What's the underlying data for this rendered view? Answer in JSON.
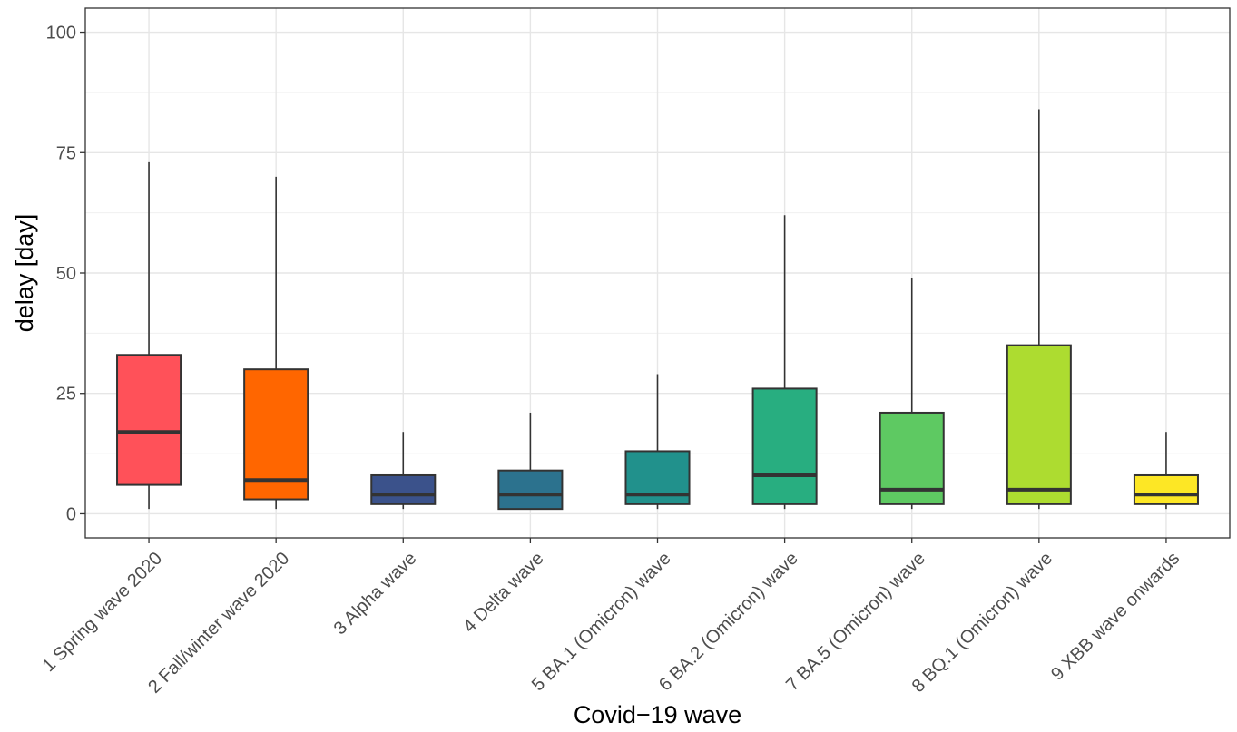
{
  "chart_data": {
    "type": "boxplot",
    "title": "",
    "xlabel": "Covid−19 wave",
    "ylabel": "delay [day]",
    "ylim": [
      -5,
      105
    ],
    "yticks": [
      0,
      25,
      50,
      75,
      100
    ],
    "grid": true,
    "legend": "none",
    "categories": [
      "1 Spring wave 2020",
      "2 Fall/winter wave 2020",
      "3 Alpha wave",
      "4 Delta wave",
      "5 BA.1 (Omicron) wave",
      "6 BA.2 (Omicron) wave",
      "7 BA.5 (Omicron) wave",
      "8 BQ.1 (Omicron) wave",
      "9 XBB wave onwards"
    ],
    "boxes": [
      {
        "category": "1 Spring wave 2020",
        "whisker_low": 1,
        "q1": 6,
        "median": 17,
        "q3": 33,
        "whisker_high": 73,
        "color": "#ff5159"
      },
      {
        "category": "2 Fall/winter wave 2020",
        "whisker_low": 1,
        "q1": 3,
        "median": 7,
        "q3": 30,
        "whisker_high": 70,
        "color": "#ff6600"
      },
      {
        "category": "3 Alpha wave",
        "whisker_low": 1,
        "q1": 2,
        "median": 4,
        "q3": 8,
        "whisker_high": 17,
        "color": "#3b528b"
      },
      {
        "category": "4 Delta wave",
        "whisker_low": 1,
        "q1": 1,
        "median": 4,
        "q3": 9,
        "whisker_high": 21,
        "color": "#2c728e"
      },
      {
        "category": "5 BA.1 (Omicron) wave",
        "whisker_low": 1,
        "q1": 2,
        "median": 4,
        "q3": 13,
        "whisker_high": 29,
        "color": "#21918c"
      },
      {
        "category": "6 BA.2 (Omicron) wave",
        "whisker_low": 1,
        "q1": 2,
        "median": 8,
        "q3": 26,
        "whisker_high": 62,
        "color": "#28ae80"
      },
      {
        "category": "7 BA.5 (Omicron) wave",
        "whisker_low": 1,
        "q1": 2,
        "median": 5,
        "q3": 21,
        "whisker_high": 49,
        "color": "#5ec962"
      },
      {
        "category": "8 BQ.1 (Omicron) wave",
        "whisker_low": 1,
        "q1": 2,
        "median": 5,
        "q3": 35,
        "whisker_high": 84,
        "color": "#addc30"
      },
      {
        "category": "9 XBB wave onwards",
        "whisker_low": 1,
        "q1": 2,
        "median": 4,
        "q3": 8,
        "whisker_high": 17,
        "color": "#fde725"
      }
    ]
  }
}
